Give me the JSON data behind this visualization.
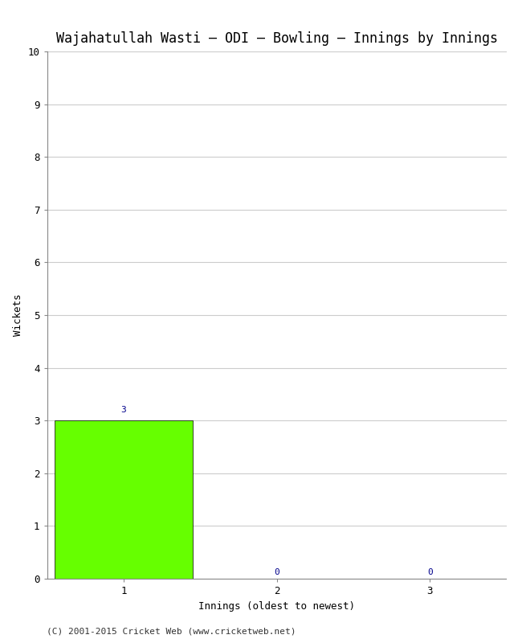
{
  "title": "Wajahatullah Wasti – ODI – Bowling – Innings by Innings",
  "xlabel": "Innings (oldest to newest)",
  "ylabel": "Wickets",
  "categories": [
    1,
    2,
    3
  ],
  "values": [
    3,
    0,
    0
  ],
  "bar_color": "#66ff00",
  "bar_edgecolor": "#000000",
  "ylim": [
    0,
    10
  ],
  "yticks": [
    0,
    1,
    2,
    3,
    4,
    5,
    6,
    7,
    8,
    9,
    10
  ],
  "xticks": [
    1,
    2,
    3
  ],
  "xlim": [
    0.5,
    3.5
  ],
  "background_color": "#ffffff",
  "grid_color": "#cccccc",
  "label_color": "#00008b",
  "title_fontsize": 12,
  "axis_label_fontsize": 9,
  "tick_fontsize": 9,
  "annotation_fontsize": 8,
  "footer": "(C) 2001-2015 Cricket Web (www.cricketweb.net)",
  "footer_fontsize": 8,
  "bar_width": 0.9
}
